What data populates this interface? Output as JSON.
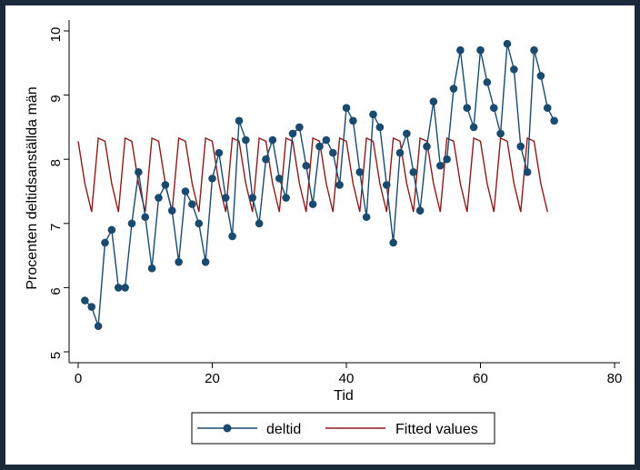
{
  "chart_data": {
    "type": "line",
    "title": "",
    "xlabel": "Tid",
    "ylabel": "Procenten deltidsanställda män",
    "xlim": [
      0,
      80
    ],
    "ylim": [
      5,
      10
    ],
    "xticks": [
      0,
      20,
      40,
      60,
      80
    ],
    "yticks": [
      5,
      6,
      7,
      8,
      9,
      10
    ],
    "colors": {
      "outer_background": "#1a2a3a",
      "plot_region": "#ffffff",
      "page_region": "#ffffff",
      "deltid": "#1a4a6e",
      "fitted": "#8b1a1a"
    },
    "legend": {
      "position": "bottom",
      "entries": [
        {
          "key": "deltid",
          "label": "deltid"
        },
        {
          "key": "fitted",
          "label": "Fitted values"
        }
      ]
    },
    "series": [
      {
        "name": "deltid",
        "style": "line-markers",
        "x": [
          1,
          2,
          3,
          4,
          5,
          6,
          7,
          8,
          9,
          10,
          11,
          12,
          13,
          14,
          15,
          16,
          17,
          18,
          19,
          20,
          21,
          22,
          23,
          24,
          25,
          26,
          27,
          28,
          29,
          30,
          31,
          32,
          33,
          34,
          35,
          36,
          37,
          38,
          39,
          40,
          41,
          42,
          43,
          44,
          45,
          46,
          47,
          48,
          49,
          50,
          51,
          52,
          53,
          54,
          55,
          56,
          57,
          58,
          59,
          60,
          61,
          62,
          63,
          64,
          65,
          66,
          67,
          68,
          69,
          70,
          71
        ],
        "values": [
          5.8,
          5.7,
          5.4,
          6.7,
          6.9,
          6.0,
          6.0,
          7.0,
          7.8,
          7.1,
          6.3,
          7.4,
          7.6,
          7.2,
          6.4,
          7.5,
          7.3,
          7.0,
          6.4,
          7.7,
          8.1,
          7.4,
          6.8,
          8.6,
          8.3,
          7.4,
          7.0,
          8.0,
          8.3,
          7.7,
          7.4,
          8.4,
          8.5,
          7.9,
          7.3,
          8.2,
          8.3,
          8.1,
          7.6,
          8.8,
          8.6,
          7.8,
          7.1,
          8.7,
          8.5,
          7.6,
          6.7,
          8.1,
          8.4,
          7.8,
          7.2,
          8.2,
          8.9,
          7.9,
          8.0,
          9.1,
          9.7,
          8.8,
          8.5,
          9.7,
          9.2,
          8.8,
          8.4,
          9.8,
          9.4,
          8.2,
          7.8,
          9.7,
          9.3,
          8.8,
          8.6
        ]
      },
      {
        "name": "Fitted values",
        "style": "line",
        "x": [
          0,
          1,
          2,
          3,
          4,
          5,
          6,
          7,
          8,
          9,
          10,
          11,
          12,
          13,
          14,
          15,
          16,
          17,
          18,
          19,
          20,
          21,
          22,
          23,
          24,
          25,
          26,
          27,
          28,
          29,
          30,
          31,
          32,
          33,
          34,
          35,
          36,
          37,
          38,
          39,
          40,
          41,
          42,
          43,
          44,
          45,
          46,
          47,
          48,
          49,
          50,
          51,
          52,
          53,
          54,
          55,
          56,
          57,
          58,
          59,
          60,
          61,
          62,
          63,
          64,
          65,
          66,
          67,
          68,
          69,
          70
        ],
        "values": [
          8.28,
          7.62,
          7.18,
          8.33,
          8.28,
          7.62,
          7.18,
          8.33,
          8.28,
          7.62,
          7.18,
          8.33,
          8.28,
          7.62,
          7.18,
          8.33,
          8.28,
          7.62,
          7.18,
          8.33,
          8.28,
          7.62,
          7.18,
          8.33,
          8.28,
          7.62,
          7.18,
          8.33,
          8.28,
          7.62,
          7.18,
          8.33,
          8.28,
          7.62,
          7.18,
          8.33,
          8.28,
          7.62,
          7.18,
          8.33,
          8.28,
          7.62,
          7.18,
          8.33,
          8.28,
          7.62,
          7.18,
          8.33,
          8.28,
          7.62,
          7.18,
          8.33,
          8.28,
          7.62,
          7.18,
          8.33,
          8.28,
          7.62,
          7.18,
          8.33,
          8.28,
          7.62,
          7.18,
          8.33,
          8.28,
          7.62,
          7.18,
          8.33,
          8.28,
          7.62,
          7.18
        ]
      }
    ]
  }
}
